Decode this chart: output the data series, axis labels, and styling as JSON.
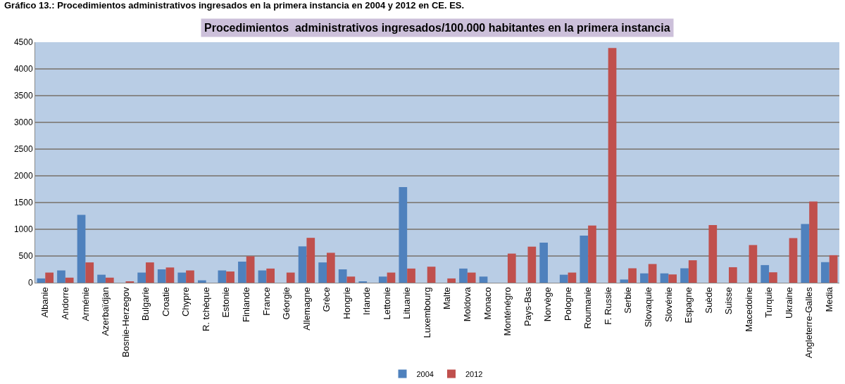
{
  "chart_data": {
    "type": "bar",
    "title": "Procedimientos  administrativos ingresados/100.000 habitantes en la primera instancia",
    "subtitle": "Gráfico 13.: Procedimientos administrativos ingresados en la primera instancia en 2004 y 2012 en CE. ES.",
    "categories": [
      "Albanie",
      "Andorre",
      "Arménie",
      "Azerbaïdjan",
      "Bosnie-Herzegov",
      "Bulgarie",
      "Croatie",
      "Chypre",
      "R. tchèque",
      "Estonie",
      "Finlande",
      "France",
      "Géorgie",
      "Allemagne",
      "Grèce",
      "Hongrie",
      "Irlande",
      "Lettonie",
      "Lituanie",
      "Luxembourg",
      "Malte",
      "Moldova",
      "Monaco",
      "Monténégro",
      "Pays-Bas",
      "Norvège",
      "Pologne",
      "Roumanie",
      "F. Russie",
      "Serbie",
      "Slovaquie",
      "Slovénie",
      "Espagne",
      "Suède",
      "Suisse",
      "Macedoine",
      "Turquie",
      "Ukraine",
      "Angleterre-Galles",
      "Media"
    ],
    "series": [
      {
        "name": "2004",
        "color": "#4f81bd",
        "values": [
          80,
          230,
          1270,
          150,
          null,
          190,
          250,
          190,
          45,
          230,
          395,
          230,
          null,
          680,
          380,
          250,
          25,
          115,
          1790,
          null,
          null,
          265,
          115,
          null,
          null,
          750,
          150,
          880,
          null,
          60,
          175,
          175,
          270,
          null,
          null,
          null,
          330,
          null,
          1100,
          385
        ]
      },
      {
        "name": "2012",
        "color": "#c0504d",
        "values": [
          190,
          95,
          380,
          95,
          25,
          380,
          285,
          230,
          null,
          210,
          495,
          265,
          190,
          840,
          560,
          115,
          null,
          190,
          265,
          300,
          80,
          190,
          null,
          545,
          675,
          null,
          190,
          1070,
          4390,
          270,
          350,
          155,
          420,
          1080,
          290,
          705,
          195,
          835,
          1520,
          515
        ]
      }
    ],
    "ylim": [
      0,
      4500
    ],
    "yticks": [
      0,
      500,
      1000,
      1500,
      2000,
      2500,
      3000,
      3500,
      4000,
      4500
    ],
    "grid": "y",
    "legend": "bottom"
  }
}
